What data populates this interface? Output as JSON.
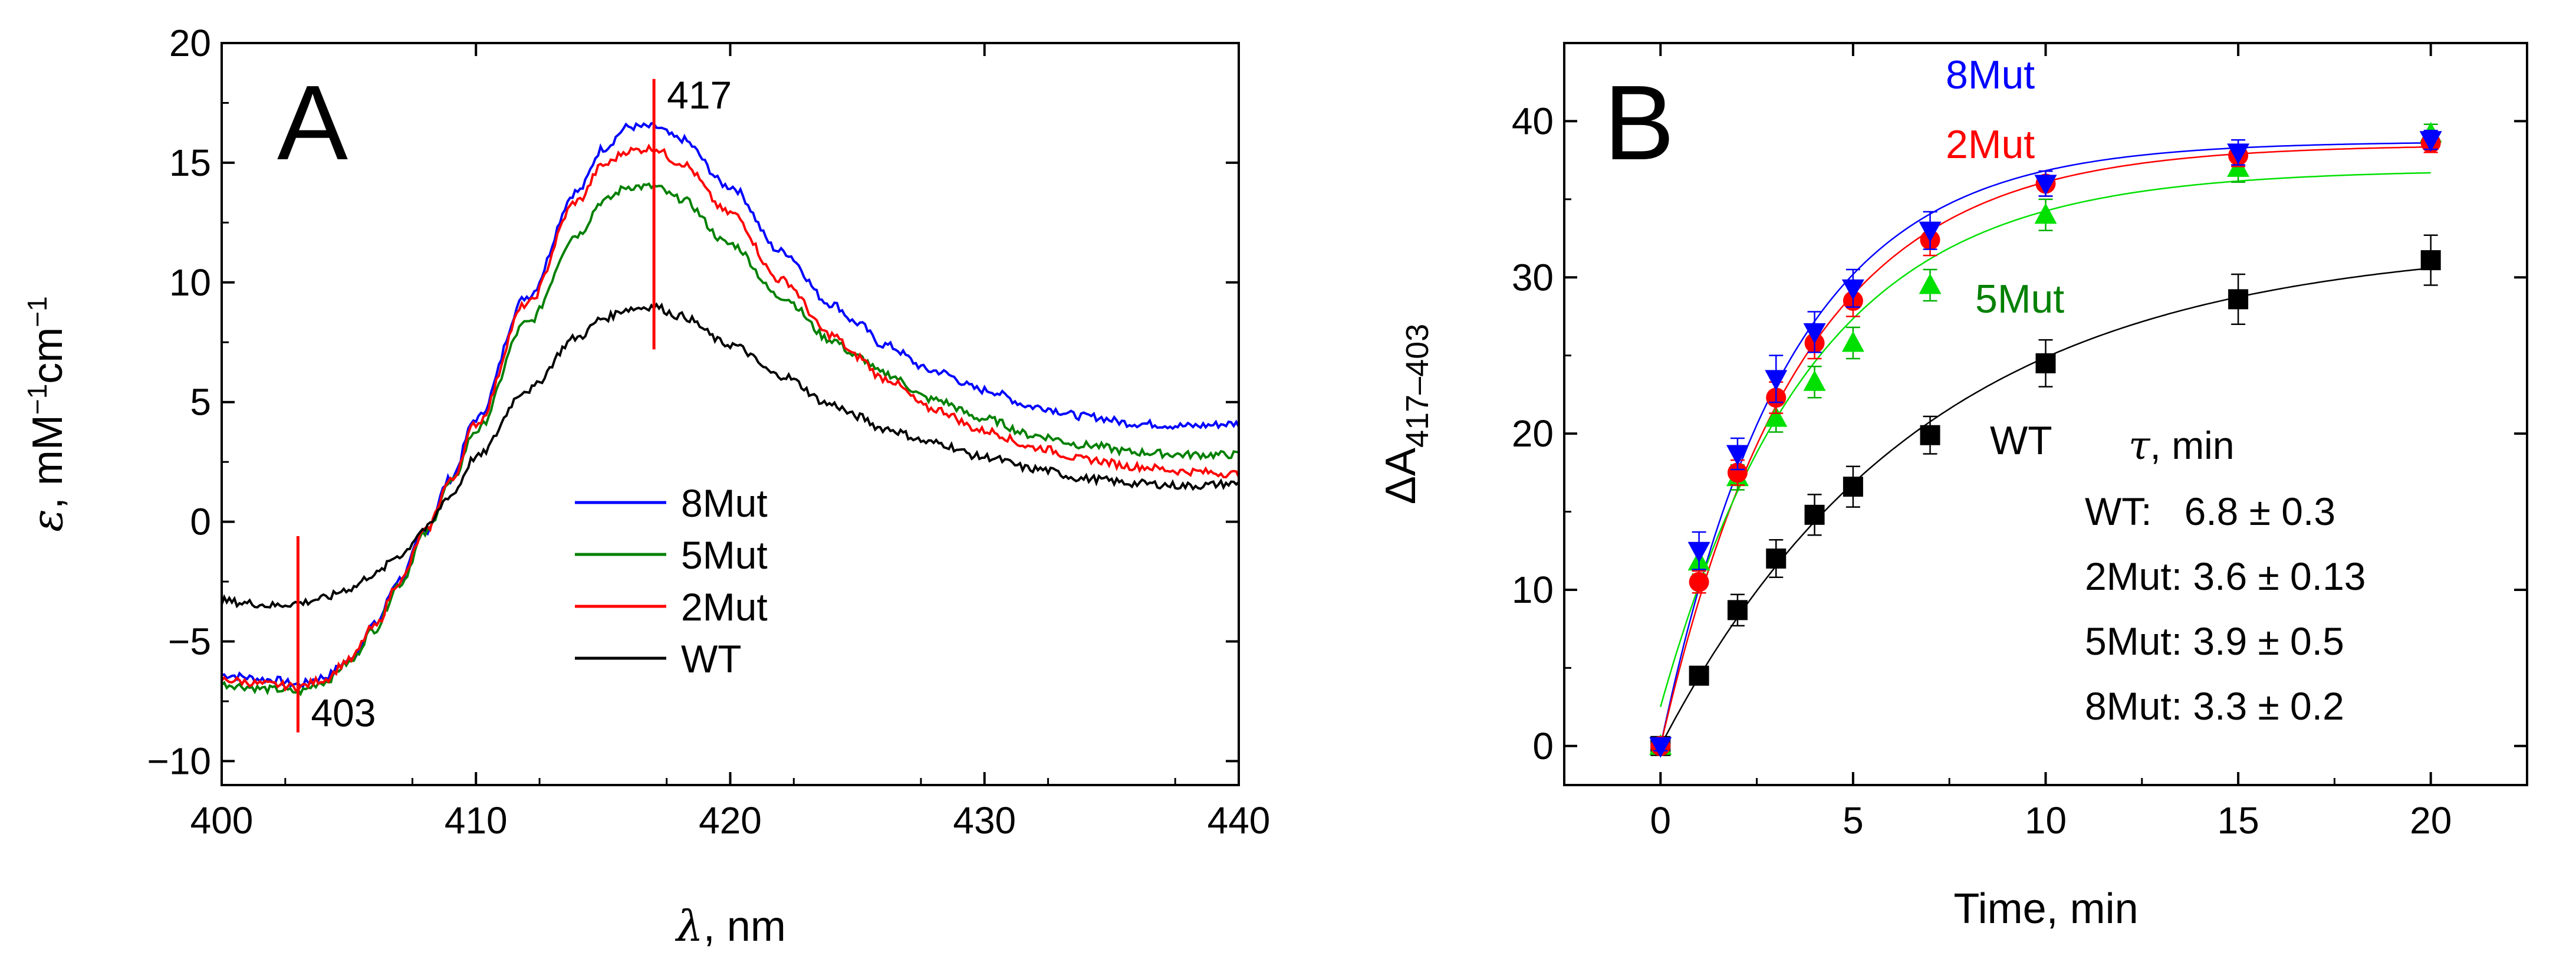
{
  "chart_data": [
    {
      "type": "line",
      "panel_label": "A",
      "xlabel_symbol": "λ",
      "xlabel_unit": ", nm",
      "ylabel_symbol": "ε",
      "ylabel_unit_html": ", mM⁻¹cm⁻¹",
      "ylabel_unit": ", mM",
      "ylabel_exp1": "−1",
      "ylabel_unit2": "cm",
      "ylabel_exp2": "−1",
      "xlim": [
        400,
        440
      ],
      "ylim": [
        -11,
        20
      ],
      "xticks": [
        400,
        410,
        420,
        430,
        440
      ],
      "xtick_labels": [
        "400",
        "410",
        "420",
        "430",
        "440"
      ],
      "yticks": [
        -10,
        -5,
        0,
        5,
        10,
        15,
        20
      ],
      "ytick_labels": [
        "−10",
        "−5",
        "0",
        "5",
        "10",
        "15",
        "20"
      ],
      "markers": [
        {
          "label": "417",
          "x": 417,
          "y_from": 7.2,
          "y_to": 18.5
        },
        {
          "label": "403",
          "x": 403,
          "y_from": -8.8,
          "y_to": -0.6
        }
      ],
      "legend_position": "lower-center",
      "series": [
        {
          "name": "8Mut",
          "color": "#0000ff",
          "x": [
            400,
            402,
            403,
            404,
            405,
            406,
            407,
            408,
            409,
            410,
            412,
            414,
            415,
            416,
            417,
            418,
            420,
            422,
            424,
            425,
            426,
            428,
            430,
            432,
            434,
            436,
            438,
            440
          ],
          "y": [
            -6.4,
            -6.6,
            -6.8,
            -6.5,
            -5.8,
            -4.3,
            -2.4,
            -0.4,
            1.8,
            4.3,
            9.4,
            13.8,
            15.6,
            16.5,
            16.5,
            16.0,
            14.0,
            11.3,
            9.1,
            8.3,
            7.4,
            6.3,
            5.5,
            4.8,
            4.4,
            4.1,
            4.0,
            4.1
          ]
        },
        {
          "name": "5Mut",
          "color": "#008000",
          "x": [
            400,
            402,
            403,
            404,
            405,
            406,
            407,
            408,
            409,
            410,
            412,
            414,
            415,
            416,
            417,
            418,
            420,
            422,
            424,
            425,
            426,
            428,
            430,
            432,
            434,
            436,
            438,
            440
          ],
          "y": [
            -6.8,
            -7.0,
            -7.1,
            -6.7,
            -5.9,
            -4.5,
            -2.6,
            -0.5,
            1.6,
            3.8,
            8.3,
            12.0,
            13.4,
            14.0,
            14.0,
            13.5,
            11.6,
            9.4,
            7.6,
            6.9,
            6.2,
            5.1,
            4.3,
            3.6,
            3.2,
            2.9,
            2.8,
            2.8
          ]
        },
        {
          "name": "2Mut",
          "color": "#ff0000",
          "x": [
            400,
            402,
            403,
            404,
            405,
            406,
            407,
            408,
            409,
            410,
            412,
            414,
            415,
            416,
            417,
            418,
            420,
            422,
            424,
            425,
            426,
            428,
            430,
            432,
            434,
            436,
            438,
            440
          ],
          "y": [
            -6.6,
            -6.8,
            -6.9,
            -6.6,
            -5.8,
            -4.4,
            -2.5,
            -0.4,
            1.7,
            4.1,
            9.1,
            13.4,
            14.9,
            15.5,
            15.6,
            15.0,
            12.9,
            10.1,
            7.8,
            6.9,
            6.0,
            4.7,
            3.8,
            3.1,
            2.6,
            2.3,
            2.1,
            2.0
          ]
        },
        {
          "name": "WT",
          "color": "#000000",
          "x": [
            400,
            401,
            402,
            403,
            404,
            405,
            406,
            407,
            408,
            409,
            410,
            412,
            414,
            415,
            416,
            417,
            418,
            420,
            422,
            424,
            425,
            426,
            428,
            430,
            432,
            434,
            436,
            438,
            440
          ],
          "y": [
            -3.3,
            -3.4,
            -3.5,
            -3.4,
            -3.2,
            -2.8,
            -2.2,
            -1.4,
            -0.3,
            1.1,
            2.7,
            5.5,
            7.7,
            8.5,
            8.9,
            9.0,
            8.6,
            7.4,
            6.1,
            4.9,
            4.4,
            3.9,
            3.3,
            2.7,
            2.2,
            1.8,
            1.6,
            1.5,
            1.6
          ]
        }
      ]
    },
    {
      "type": "scatter",
      "panel_label": "B",
      "xlabel": "Time, min",
      "ylabel_main": "ΔA",
      "ylabel_sub": "417–403",
      "xlim": [
        -2.5,
        22.5
      ],
      "ylim": [
        -2.5,
        45
      ],
      "xticks": [
        0,
        5,
        10,
        15,
        20
      ],
      "xtick_labels": [
        "0",
        "5",
        "10",
        "15",
        "20"
      ],
      "yticks": [
        0,
        10,
        20,
        30,
        40
      ],
      "ytick_labels": [
        "0",
        "10",
        "20",
        "30",
        "40"
      ],
      "series": [
        {
          "name": "8Mut",
          "marker": "triangle-down",
          "color": "#0000ff",
          "label_color": "#0000ff",
          "x": [
            0,
            1,
            2,
            3,
            4,
            5,
            7,
            10,
            15,
            20
          ],
          "y": [
            0,
            12.5,
            18.7,
            23.5,
            26.5,
            29.3,
            33.0,
            36.0,
            38.0,
            38.8
          ],
          "err": [
            0.3,
            1.2,
            1.0,
            1.5,
            1.3,
            1.2,
            1.2,
            0.8,
            0.8,
            0.6
          ],
          "fit": {
            "A": 38.7,
            "tau": 3.3,
            "offset": 0
          }
        },
        {
          "name": "2Mut",
          "marker": "circle",
          "color": "#ff0000",
          "label_color": "#ff0000",
          "x": [
            0,
            1,
            2,
            3,
            4,
            5,
            7,
            10,
            15,
            20
          ],
          "y": [
            0,
            10.5,
            17.5,
            22.3,
            25.8,
            28.5,
            32.4,
            36.0,
            37.8,
            38.6
          ],
          "err": [
            0.3,
            0.7,
            0.8,
            1.0,
            1.0,
            1.0,
            1.0,
            0.8,
            0.7,
            0.6
          ],
          "fit": {
            "A": 38.5,
            "tau": 3.6,
            "offset": 0
          }
        },
        {
          "name": "5Mut",
          "marker": "triangle-up",
          "color": "#00e000",
          "label_color": "#008000",
          "x": [
            0,
            1,
            2,
            3,
            4,
            5,
            7,
            10,
            15,
            20
          ],
          "y": [
            0,
            11.8,
            17.2,
            21.0,
            23.3,
            25.8,
            29.5,
            34.0,
            37.0,
            39.2
          ],
          "err": [
            0.3,
            0.8,
            0.8,
            0.9,
            1.0,
            1.0,
            1.0,
            1.0,
            0.9,
            0.6
          ],
          "fit": {
            "A": 34.4,
            "tau": 3.9,
            "offset": 2.5
          }
        },
        {
          "name": "WT",
          "marker": "square",
          "color": "#000000",
          "label_color": "#000000",
          "x": [
            0,
            1,
            2,
            3,
            4,
            5,
            7,
            10,
            15,
            20
          ],
          "y": [
            0,
            4.5,
            8.7,
            12.0,
            14.8,
            16.6,
            19.9,
            24.5,
            28.6,
            31.1
          ],
          "err": [
            0.3,
            0.5,
            1.0,
            1.2,
            1.3,
            1.3,
            1.2,
            1.5,
            1.6,
            1.6
          ],
          "fit": {
            "A": 32.3,
            "tau": 6.8,
            "offset": 0
          }
        }
      ],
      "tau_table": {
        "header_symbol": "τ",
        "header_unit": ",  min",
        "rows": [
          "WT:   6.8 ± 0.3",
          "2Mut: 3.6 ± 0.13",
          "5Mut: 3.9 ± 0.5",
          "8Mut: 3.3 ± 0.2"
        ]
      }
    }
  ]
}
